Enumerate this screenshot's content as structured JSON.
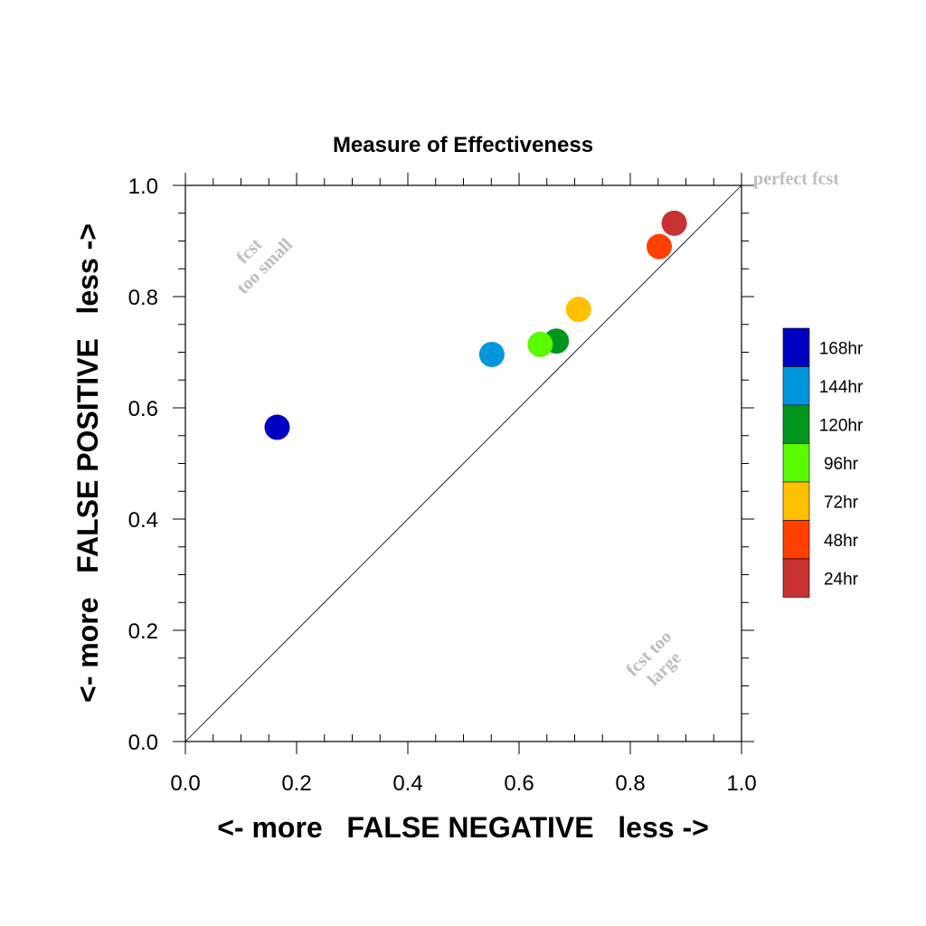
{
  "chart_data": {
    "type": "scatter",
    "title": "Measure of Effectiveness",
    "xlabel": "<- more   FALSE NEGATIVE   less ->",
    "ylabel": "<- more   FALSE POSITIVE   less ->",
    "xlim": [
      0.0,
      1.0
    ],
    "ylim": [
      0.0,
      1.0
    ],
    "xticks": [
      "0.0",
      "0.2",
      "0.4",
      "0.6",
      "0.8",
      "1.0"
    ],
    "yticks": [
      "0.0",
      "0.2",
      "0.4",
      "0.6",
      "0.8",
      "1.0"
    ],
    "grid": false,
    "reference_line": "diagonal y = x",
    "annotations": {
      "perfect": "perfect fcst",
      "small_line1": "fcst",
      "small_line2": "too small",
      "large_line1": "fcst too",
      "large_line2": "large"
    },
    "legend_position": "right",
    "series": [
      {
        "name": "168hr",
        "color": "#0000c0",
        "x": 0.165,
        "y": 0.565
      },
      {
        "name": "144hr",
        "color": "#0096dc",
        "x": 0.551,
        "y": 0.696
      },
      {
        "name": "120hr",
        "color": "#00961e",
        "x": 0.667,
        "y": 0.72
      },
      {
        "name": "96hr",
        "color": "#5afa00",
        "x": 0.638,
        "y": 0.714
      },
      {
        "name": "72hr",
        "color": "#ffc000",
        "x": 0.707,
        "y": 0.777
      },
      {
        "name": "48hr",
        "color": "#ff4000",
        "x": 0.852,
        "y": 0.89
      },
      {
        "name": "24hr",
        "color": "#c83232",
        "x": 0.879,
        "y": 0.932
      }
    ]
  }
}
